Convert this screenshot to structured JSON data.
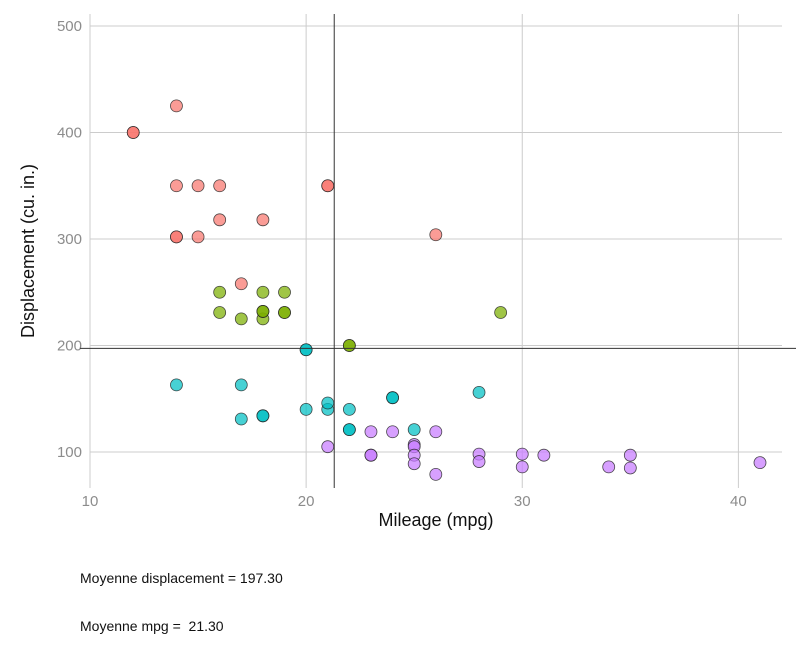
{
  "chart_data": {
    "type": "scatter",
    "title": "",
    "xlabel": "Mileage (mpg)",
    "ylabel": "Displacement (cu. in.)",
    "xlim": [
      10,
      41.5
    ],
    "ylim": [
      70,
      515
    ],
    "x_ticks": [
      10,
      20,
      30,
      40
    ],
    "y_ticks": [
      100,
      200,
      300,
      400,
      500
    ],
    "grid": true,
    "legend": "none",
    "reference_lines": {
      "vertical": 21.3,
      "horizontal": 197.3,
      "color": "#333333"
    },
    "series": [
      {
        "color": "#F8766D",
        "points": [
          [
            12,
            400
          ],
          [
            12,
            400
          ],
          [
            14,
            425
          ],
          [
            14,
            350
          ],
          [
            15,
            350
          ],
          [
            16,
            350
          ],
          [
            14,
            302
          ],
          [
            14,
            302
          ],
          [
            15,
            302
          ],
          [
            16,
            318
          ],
          [
            18,
            318
          ],
          [
            21,
            350
          ],
          [
            21,
            350
          ],
          [
            26,
            304
          ],
          [
            17,
            258
          ]
        ]
      },
      {
        "color": "#7CAE00",
        "points": [
          [
            16,
            250
          ],
          [
            18,
            250
          ],
          [
            19,
            250
          ],
          [
            16,
            231
          ],
          [
            17,
            225
          ],
          [
            18,
            225
          ],
          [
            18,
            232
          ],
          [
            18,
            232
          ],
          [
            19,
            231
          ],
          [
            19,
            231
          ],
          [
            22,
            200
          ],
          [
            22,
            200
          ],
          [
            29,
            231
          ]
        ]
      },
      {
        "color": "#00BFC4",
        "points": [
          [
            14,
            163
          ],
          [
            17,
            163
          ],
          [
            17,
            131
          ],
          [
            18,
            134
          ],
          [
            18,
            134
          ],
          [
            20,
            196
          ],
          [
            20,
            196
          ],
          [
            20,
            140
          ],
          [
            21,
            140
          ],
          [
            21,
            146
          ],
          [
            22,
            140
          ],
          [
            22,
            121
          ],
          [
            22,
            121
          ],
          [
            24,
            151
          ],
          [
            24,
            151
          ],
          [
            25,
            121
          ],
          [
            28,
            156
          ]
        ]
      },
      {
        "color": "#C77CFF",
        "points": [
          [
            21,
            105
          ],
          [
            23,
            119
          ],
          [
            23,
            97
          ],
          [
            23,
            97
          ],
          [
            24,
            119
          ],
          [
            25,
            107
          ],
          [
            25,
            105
          ],
          [
            25,
            97
          ],
          [
            25,
            89
          ],
          [
            26,
            119
          ],
          [
            26,
            79
          ],
          [
            28,
            98
          ],
          [
            28,
            91
          ],
          [
            30,
            98
          ],
          [
            30,
            86
          ],
          [
            31,
            97
          ],
          [
            34,
            86
          ],
          [
            35,
            97
          ],
          [
            35,
            85
          ],
          [
            41,
            90
          ]
        ]
      }
    ]
  },
  "caption": {
    "line1": "Moyenne displacement = 197.30",
    "line2": "Moyenne mpg =  21.30"
  }
}
